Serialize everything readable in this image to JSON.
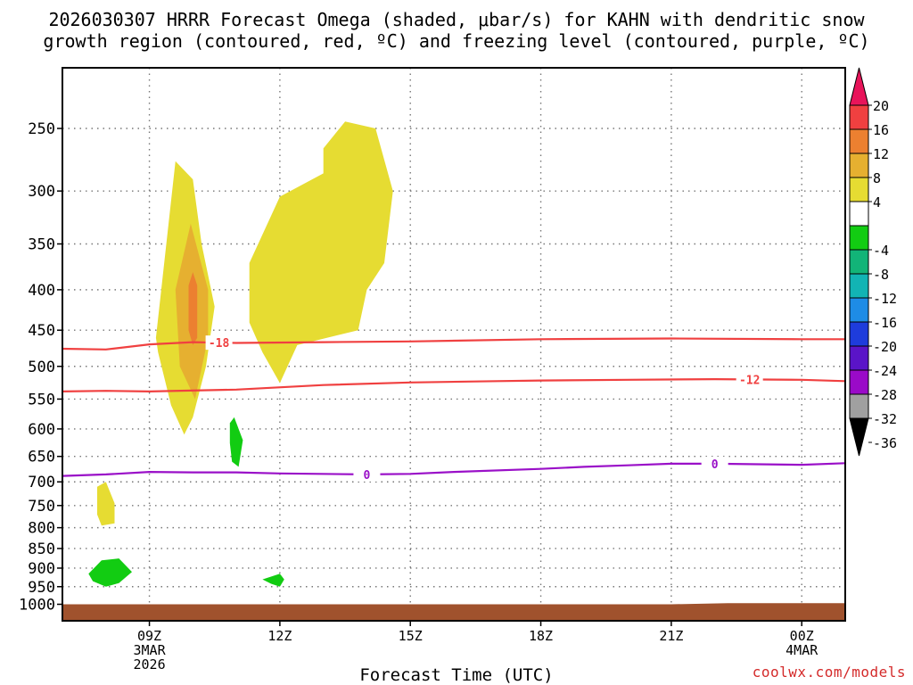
{
  "title_line1": "2026030307 HRRR Forecast Omega (shaded, μbar/s) for KAHN with dendritic snow",
  "title_line2": "growth region (contoured, red, ºC) and freezing level (contoured, purple, ºC)",
  "watermark": "coolwx.com/models",
  "chart_data": {
    "type": "heatmap",
    "title": "2026030307 HRRR Forecast Omega (shaded, μbar/s) for KAHN with dendritic snow growth region (contoured, red, ºC) and freezing level (contoured, purple, ºC)",
    "xlabel": "Forecast Time (UTC)",
    "ylabel": "",
    "x_range_hours_utc": [
      7,
      25
    ],
    "y_range_hpa": [
      1000,
      200
    ],
    "y_scale": "log-pressure",
    "grid": true,
    "yticks": [
      250,
      300,
      350,
      400,
      450,
      500,
      550,
      600,
      650,
      700,
      750,
      800,
      850,
      900,
      950,
      1000
    ],
    "xticks": [
      {
        "hour": 9,
        "label": "09Z",
        "sub1": "3MAR",
        "sub2": "2026"
      },
      {
        "hour": 12,
        "label": "12Z",
        "sub1": "",
        "sub2": ""
      },
      {
        "hour": 15,
        "label": "15Z",
        "sub1": "",
        "sub2": ""
      },
      {
        "hour": 18,
        "label": "18Z",
        "sub1": "",
        "sub2": ""
      },
      {
        "hour": 21,
        "label": "21Z",
        "sub1": "",
        "sub2": ""
      },
      {
        "hour": 24,
        "label": "00Z",
        "sub1": "4MAR",
        "sub2": ""
      }
    ],
    "colorbar": {
      "labels": [
        "20",
        "16",
        "12",
        "8",
        "4",
        "-4",
        "-8",
        "-12",
        "-16",
        "-20",
        "-24",
        "-28",
        "-32",
        "-36"
      ],
      "colors": [
        "#e8145a",
        "#f04040",
        "#ec8030",
        "#e6b030",
        "#e6dc32",
        "#ffffff",
        "#12cc12",
        "#12b478",
        "#12b4b4",
        "#1e8ce6",
        "#1e3cdc",
        "#5a14c8",
        "#9a0ac8",
        "#a0a0a0",
        "#000000"
      ]
    },
    "omega_regions": [
      {
        "color": "#e6dc32",
        "points": [
          [
            9.15,
            460
          ],
          [
            9.6,
            275
          ],
          [
            10.0,
            290
          ],
          [
            10.2,
            350
          ],
          [
            10.5,
            420
          ],
          [
            10.3,
            500
          ],
          [
            10.0,
            580
          ],
          [
            9.8,
            610
          ],
          [
            9.5,
            560
          ],
          [
            9.2,
            480
          ]
        ]
      },
      {
        "color": "#e6b030",
        "points": [
          [
            9.6,
            400
          ],
          [
            9.95,
            330
          ],
          [
            10.35,
            400
          ],
          [
            10.35,
            460
          ],
          [
            10.05,
            550
          ],
          [
            9.7,
            500
          ]
        ]
      },
      {
        "color": "#ec8030",
        "points": [
          [
            9.9,
            395
          ],
          [
            10.0,
            380
          ],
          [
            10.1,
            395
          ],
          [
            10.1,
            460
          ],
          [
            10.0,
            470
          ],
          [
            9.9,
            450
          ]
        ]
      },
      {
        "color": "#e6dc32",
        "points": [
          [
            11.3,
            370
          ],
          [
            12.0,
            305
          ],
          [
            13.0,
            285
          ],
          [
            13.0,
            265
          ],
          [
            13.5,
            245
          ],
          [
            14.2,
            250
          ],
          [
            14.6,
            300
          ],
          [
            14.4,
            370
          ],
          [
            14.0,
            400
          ],
          [
            13.8,
            450
          ],
          [
            12.4,
            470
          ],
          [
            12.0,
            525
          ],
          [
            11.6,
            480
          ],
          [
            11.3,
            440
          ]
        ]
      },
      {
        "color": "#e6dc32",
        "points": [
          [
            7.8,
            710
          ],
          [
            8.0,
            700
          ],
          [
            8.2,
            745
          ],
          [
            8.2,
            790
          ],
          [
            7.9,
            795
          ],
          [
            7.8,
            770
          ]
        ]
      },
      {
        "color": "#12cc12",
        "points": [
          [
            10.85,
            590
          ],
          [
            10.95,
            580
          ],
          [
            11.15,
            620
          ],
          [
            11.05,
            670
          ],
          [
            10.9,
            660
          ],
          [
            10.85,
            625
          ]
        ]
      },
      {
        "color": "#12cc12",
        "points": [
          [
            7.6,
            915
          ],
          [
            7.9,
            880
          ],
          [
            8.3,
            875
          ],
          [
            8.6,
            910
          ],
          [
            8.3,
            940
          ],
          [
            8.0,
            950
          ],
          [
            7.7,
            935
          ]
        ]
      },
      {
        "color": "#12cc12",
        "points": [
          [
            11.6,
            930
          ],
          [
            12.0,
            915
          ],
          [
            12.1,
            930
          ],
          [
            12.0,
            950
          ],
          [
            11.8,
            942
          ]
        ]
      }
    ],
    "dgz_contours": [
      {
        "label": "-18",
        "label_hour": 10.6,
        "points": [
          [
            7.0,
            475
          ],
          [
            8.0,
            476
          ],
          [
            9.0,
            469
          ],
          [
            10.0,
            466
          ],
          [
            11.0,
            467
          ],
          [
            13.0,
            466
          ],
          [
            15.0,
            465
          ],
          [
            18.0,
            462
          ],
          [
            21.0,
            461
          ],
          [
            24.0,
            462
          ],
          [
            25.0,
            462
          ]
        ]
      },
      {
        "label": "-12",
        "label_hour": 22.8,
        "points": [
          [
            7.0,
            538
          ],
          [
            8.0,
            537
          ],
          [
            9.0,
            538
          ],
          [
            11.0,
            535
          ],
          [
            13.0,
            528
          ],
          [
            15.0,
            524
          ],
          [
            17.0,
            522
          ],
          [
            18.0,
            521
          ],
          [
            20.0,
            520
          ],
          [
            22.0,
            519
          ],
          [
            24.0,
            520
          ],
          [
            25.0,
            522
          ]
        ]
      }
    ],
    "freezing_level": {
      "label": "0",
      "label_hours": [
        14.0,
        22.0
      ],
      "points": [
        [
          7.0,
          688
        ],
        [
          8.0,
          685
        ],
        [
          9.0,
          680
        ],
        [
          10.0,
          681
        ],
        [
          11.0,
          681
        ],
        [
          12.0,
          683
        ],
        [
          14.0,
          685
        ],
        [
          15.0,
          684
        ],
        [
          16.0,
          680
        ],
        [
          18.0,
          674
        ],
        [
          19.0,
          670
        ],
        [
          20.0,
          667
        ],
        [
          21.0,
          664
        ],
        [
          22.0,
          664
        ],
        [
          23.0,
          665
        ],
        [
          24.0,
          666
        ],
        [
          25.0,
          663
        ]
      ]
    },
    "ground": {
      "color": "#a0522d",
      "top_hpa": [
        [
          7.0,
          1000
        ],
        [
          20.0,
          1000
        ],
        [
          21.0,
          1000
        ],
        [
          22.3,
          997
        ],
        [
          25.0,
          997
        ]
      ]
    }
  }
}
